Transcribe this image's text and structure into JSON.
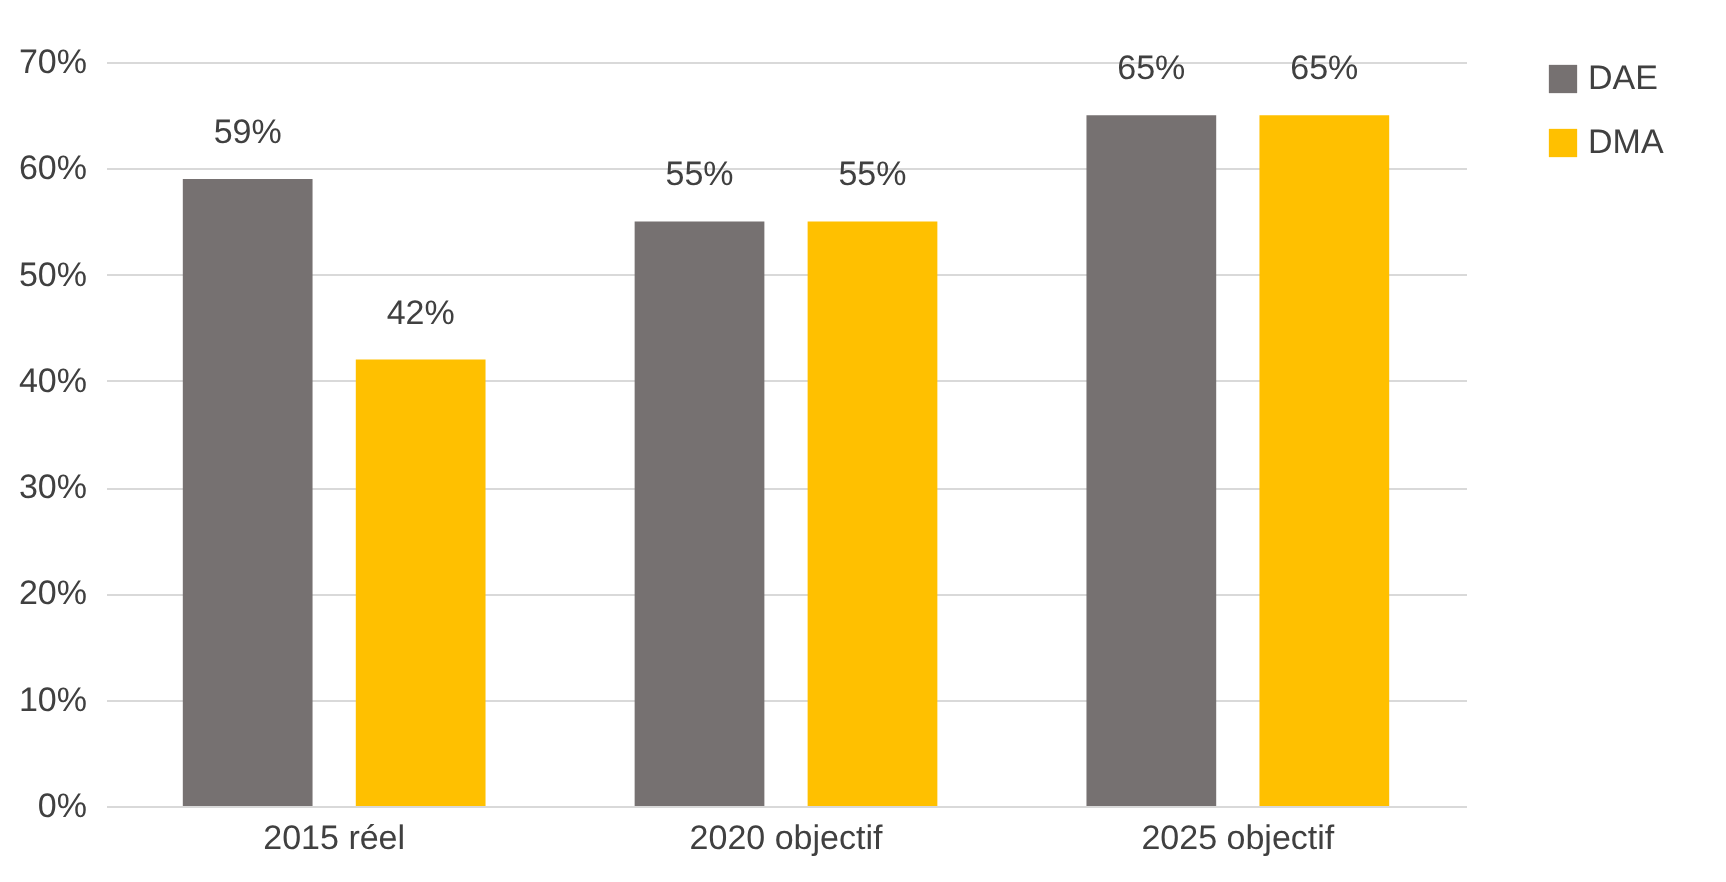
{
  "chart_data": {
    "type": "bar",
    "categories": [
      "2015 réel",
      "2020 objectif",
      "2025 objectif"
    ],
    "series": [
      {
        "name": "DAE",
        "color": "#767171",
        "values": [
          59,
          55,
          65
        ],
        "value_labels": [
          "59%",
          "55%",
          "65%"
        ]
      },
      {
        "name": "DMA",
        "color": "#ffc000",
        "values": [
          42,
          55,
          65
        ],
        "value_labels": [
          "42%",
          "55%",
          "65%"
        ]
      }
    ],
    "ylim": [
      0,
      70
    ],
    "yticks": [
      {
        "value": 0,
        "label": "0%"
      },
      {
        "value": 10,
        "label": "10%"
      },
      {
        "value": 20,
        "label": "20%"
      },
      {
        "value": 30,
        "label": "30%"
      },
      {
        "value": 40,
        "label": "40%"
      },
      {
        "value": 50,
        "label": "50%"
      },
      {
        "value": 60,
        "label": "60%"
      },
      {
        "value": 70,
        "label": "70%"
      }
    ],
    "grid": "y",
    "legend": "right"
  }
}
